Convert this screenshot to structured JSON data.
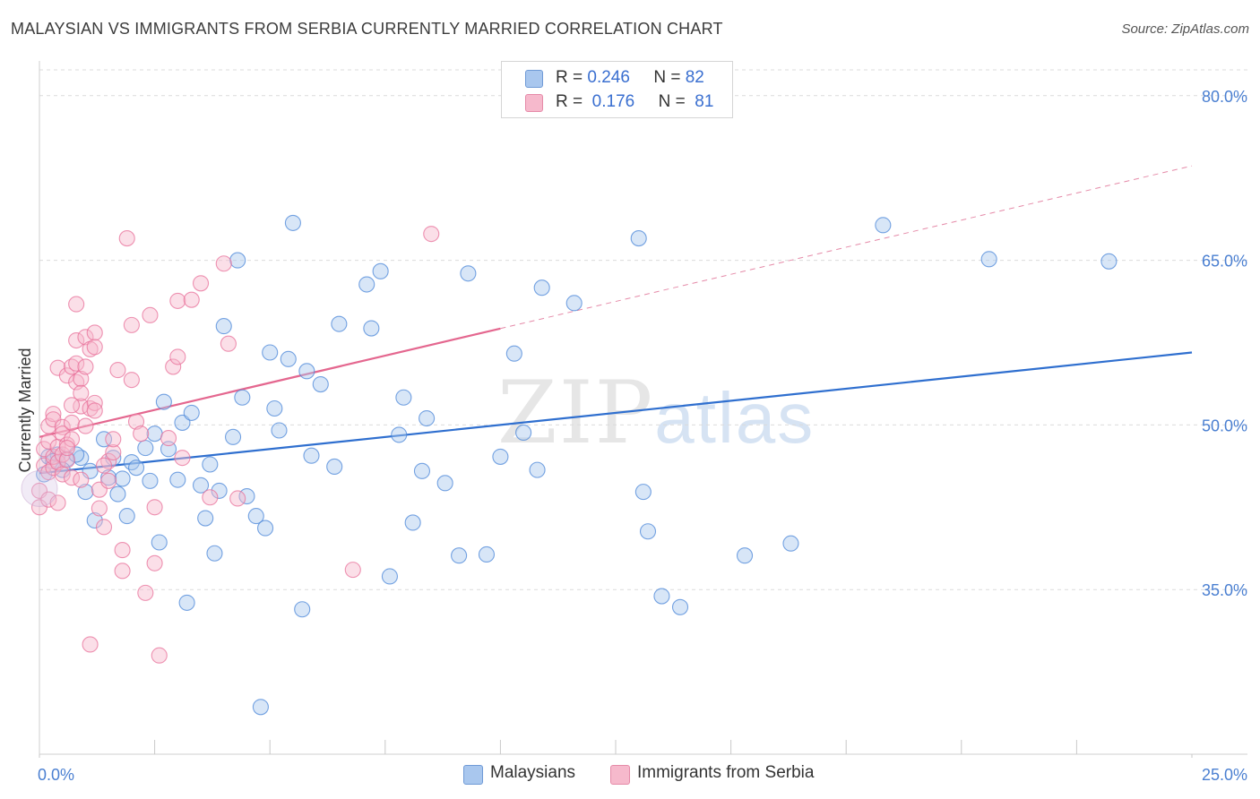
{
  "title": "MALAYSIAN VS IMMIGRANTS FROM SERBIA CURRENTLY MARRIED CORRELATION CHART",
  "source": "Source: ZipAtlas.com",
  "watermark": {
    "zip": "ZIP",
    "atlas": "atlas"
  },
  "legend": {
    "rows": [
      {
        "r_label": "R =",
        "r_value": "0.246",
        "n_label": "N =",
        "n_value": "82",
        "color": "#a9c7ee"
      },
      {
        "r_label": "R =",
        "r_value": "0.176",
        "n_label": "N =",
        "n_value": "81",
        "color": "#f6b9cc"
      }
    ]
  },
  "bottom_legend": [
    {
      "label": "Malaysians",
      "color": "#a9c7ee"
    },
    {
      "label": "Immigrants from Serbia",
      "color": "#f6b9cc"
    }
  ],
  "chart_data": {
    "type": "scatter",
    "title": "MALAYSIAN VS IMMIGRANTS FROM SERBIA CURRENTLY MARRIED CORRELATION CHART",
    "xlabel": "",
    "ylabel": "Currently Married",
    "xlim": [
      0,
      25
    ],
    "ylim": [
      20,
      83
    ],
    "x_tick_labels": [
      "0.0%",
      "25.0%"
    ],
    "y_ticks": [
      35,
      50,
      65,
      80
    ],
    "y_tick_labels": [
      "35.0%",
      "50.0%",
      "65.0%",
      "80.0%"
    ],
    "grid": true,
    "series": [
      {
        "name": "Malaysians",
        "color": "#4a86d8",
        "fill": "#a9c7ee",
        "r": 0.246,
        "n": 82,
        "trend": {
          "x0": 0,
          "y0": 45.6,
          "x1": 25,
          "y1": 56.6,
          "dashed_from": null
        },
        "points": [
          [
            0.1,
            45.5
          ],
          [
            0.2,
            47.1
          ],
          [
            0.4,
            47.3
          ],
          [
            0.6,
            46.9
          ],
          [
            0.9,
            47.0
          ],
          [
            1.0,
            43.9
          ],
          [
            1.1,
            45.8
          ],
          [
            1.2,
            41.3
          ],
          [
            1.4,
            48.7
          ],
          [
            1.5,
            45.2
          ],
          [
            1.6,
            47.0
          ],
          [
            1.7,
            43.7
          ],
          [
            1.8,
            45.1
          ],
          [
            1.9,
            41.7
          ],
          [
            2.0,
            46.6
          ],
          [
            2.1,
            46.1
          ],
          [
            2.3,
            47.9
          ],
          [
            2.4,
            44.9
          ],
          [
            2.5,
            49.2
          ],
          [
            2.6,
            39.3
          ],
          [
            2.7,
            52.1
          ],
          [
            2.8,
            47.8
          ],
          [
            3.0,
            45.0
          ],
          [
            3.1,
            50.2
          ],
          [
            3.2,
            33.8
          ],
          [
            3.3,
            51.1
          ],
          [
            3.5,
            44.5
          ],
          [
            3.6,
            41.5
          ],
          [
            3.7,
            46.4
          ],
          [
            3.8,
            38.3
          ],
          [
            3.9,
            44.0
          ],
          [
            4.0,
            59.0
          ],
          [
            4.2,
            48.9
          ],
          [
            4.3,
            65.0
          ],
          [
            4.4,
            52.5
          ],
          [
            4.5,
            43.5
          ],
          [
            4.7,
            41.7
          ],
          [
            4.8,
            24.3
          ],
          [
            4.9,
            40.6
          ],
          [
            5.0,
            56.6
          ],
          [
            5.1,
            51.5
          ],
          [
            5.2,
            49.5
          ],
          [
            5.4,
            56.0
          ],
          [
            5.5,
            68.4
          ],
          [
            5.7,
            33.2
          ],
          [
            5.8,
            54.9
          ],
          [
            5.9,
            47.2
          ],
          [
            6.1,
            53.7
          ],
          [
            6.4,
            46.2
          ],
          [
            6.5,
            59.2
          ],
          [
            7.1,
            62.8
          ],
          [
            7.2,
            58.8
          ],
          [
            7.4,
            64.0
          ],
          [
            7.6,
            36.2
          ],
          [
            7.8,
            49.1
          ],
          [
            7.9,
            52.5
          ],
          [
            8.1,
            41.1
          ],
          [
            8.3,
            45.8
          ],
          [
            8.4,
            50.6
          ],
          [
            8.8,
            44.7
          ],
          [
            9.1,
            38.1
          ],
          [
            9.3,
            63.8
          ],
          [
            9.7,
            38.2
          ],
          [
            10.0,
            47.1
          ],
          [
            10.3,
            56.5
          ],
          [
            10.5,
            49.3
          ],
          [
            10.8,
            45.9
          ],
          [
            10.9,
            62.5
          ],
          [
            11.6,
            61.1
          ],
          [
            13.0,
            67.0
          ],
          [
            13.1,
            43.9
          ],
          [
            13.2,
            40.3
          ],
          [
            13.5,
            34.4
          ],
          [
            13.9,
            33.4
          ],
          [
            15.3,
            38.1
          ],
          [
            16.3,
            39.2
          ],
          [
            18.3,
            68.2
          ],
          [
            20.6,
            65.1
          ],
          [
            23.2,
            64.9
          ],
          [
            0.3,
            46.7
          ],
          [
            0.5,
            45.9
          ],
          [
            0.8,
            47.3
          ]
        ]
      },
      {
        "name": "Immigrants from Serbia",
        "color": "#e8709a",
        "fill": "#f6b9cc",
        "r": 0.176,
        "n": 81,
        "trend": {
          "x0": 0,
          "y0": 48.9,
          "x1": 25,
          "y1": 73.6,
          "solid_until_x": 10.0
        },
        "points": [
          [
            0.0,
            42.5
          ],
          [
            0.0,
            44.0
          ],
          [
            0.1,
            46.3
          ],
          [
            0.1,
            47.8
          ],
          [
            0.2,
            43.2
          ],
          [
            0.2,
            45.7
          ],
          [
            0.2,
            48.5
          ],
          [
            0.2,
            49.9
          ],
          [
            0.3,
            51.0
          ],
          [
            0.3,
            46.1
          ],
          [
            0.3,
            47.1
          ],
          [
            0.3,
            50.5
          ],
          [
            0.4,
            55.2
          ],
          [
            0.4,
            48.0
          ],
          [
            0.4,
            46.6
          ],
          [
            0.5,
            49.8
          ],
          [
            0.5,
            47.3
          ],
          [
            0.5,
            49.2
          ],
          [
            0.5,
            45.5
          ],
          [
            0.6,
            46.8
          ],
          [
            0.6,
            48.2
          ],
          [
            0.6,
            54.5
          ],
          [
            0.7,
            55.3
          ],
          [
            0.7,
            50.2
          ],
          [
            0.7,
            48.7
          ],
          [
            0.7,
            45.2
          ],
          [
            0.8,
            53.9
          ],
          [
            0.8,
            57.7
          ],
          [
            0.8,
            61.0
          ],
          [
            0.8,
            55.6
          ],
          [
            0.9,
            51.7
          ],
          [
            0.9,
            54.2
          ],
          [
            0.9,
            52.9
          ],
          [
            1.0,
            55.3
          ],
          [
            1.0,
            58.0
          ],
          [
            1.0,
            49.9
          ],
          [
            1.1,
            51.5
          ],
          [
            1.1,
            56.9
          ],
          [
            1.2,
            58.4
          ],
          [
            1.2,
            57.1
          ],
          [
            1.2,
            52.0
          ],
          [
            1.2,
            51.3
          ],
          [
            1.3,
            44.1
          ],
          [
            1.3,
            42.4
          ],
          [
            1.4,
            40.7
          ],
          [
            1.5,
            46.7
          ],
          [
            1.5,
            44.9
          ],
          [
            1.6,
            47.5
          ],
          [
            1.7,
            55.0
          ],
          [
            1.8,
            38.6
          ],
          [
            1.8,
            36.7
          ],
          [
            1.9,
            67.0
          ],
          [
            2.0,
            59.1
          ],
          [
            2.0,
            54.1
          ],
          [
            2.1,
            50.3
          ],
          [
            2.2,
            49.2
          ],
          [
            2.3,
            34.7
          ],
          [
            2.4,
            60.0
          ],
          [
            2.5,
            42.5
          ],
          [
            2.5,
            37.4
          ],
          [
            2.6,
            29.0
          ],
          [
            2.8,
            48.8
          ],
          [
            2.9,
            55.3
          ],
          [
            3.0,
            61.3
          ],
          [
            3.0,
            56.2
          ],
          [
            3.1,
            47.0
          ],
          [
            3.3,
            61.4
          ],
          [
            3.5,
            62.9
          ],
          [
            3.7,
            43.4
          ],
          [
            4.0,
            64.7
          ],
          [
            4.1,
            57.4
          ],
          [
            4.3,
            43.3
          ],
          [
            6.8,
            36.8
          ],
          [
            8.5,
            67.4
          ],
          [
            1.1,
            30.0
          ],
          [
            0.6,
            47.9
          ],
          [
            0.4,
            42.9
          ],
          [
            0.9,
            45.0
          ],
          [
            1.4,
            46.3
          ],
          [
            1.6,
            48.7
          ],
          [
            0.7,
            51.8
          ]
        ]
      }
    ]
  }
}
